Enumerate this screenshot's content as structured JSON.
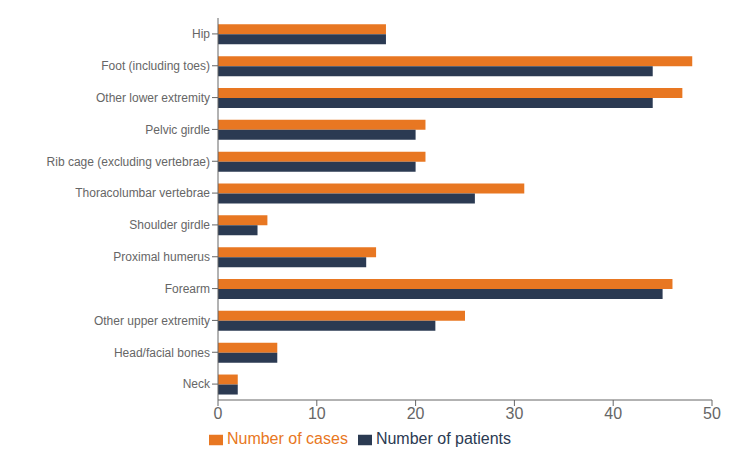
{
  "chart_data": {
    "type": "bar",
    "orientation": "horizontal",
    "categories": [
      "Neck",
      "Head/facial bones",
      "Other upper extremity",
      "Forearm",
      "Proximal humerus",
      "Shoulder girdle",
      "Thoracolumbar vertebrae",
      "Rib cage (excluding vertebrae)",
      "Pelvic girdle",
      "Other lower extremity",
      "Foot (including toes)",
      "Hip"
    ],
    "series": [
      {
        "name": "Number of cases",
        "color": "#E87722",
        "values": [
          2,
          6,
          25,
          46,
          16,
          5,
          31,
          21,
          21,
          47,
          48,
          17
        ]
      },
      {
        "name": "Number of patients",
        "color": "#2B3A52",
        "values": [
          2,
          6,
          22,
          45,
          15,
          4,
          26,
          20,
          20,
          44,
          44,
          17
        ]
      }
    ],
    "xlim": [
      0,
      50
    ],
    "xticks": [
      0,
      10,
      20,
      30,
      40,
      50
    ],
    "legend": "bottom",
    "grid": false
  }
}
